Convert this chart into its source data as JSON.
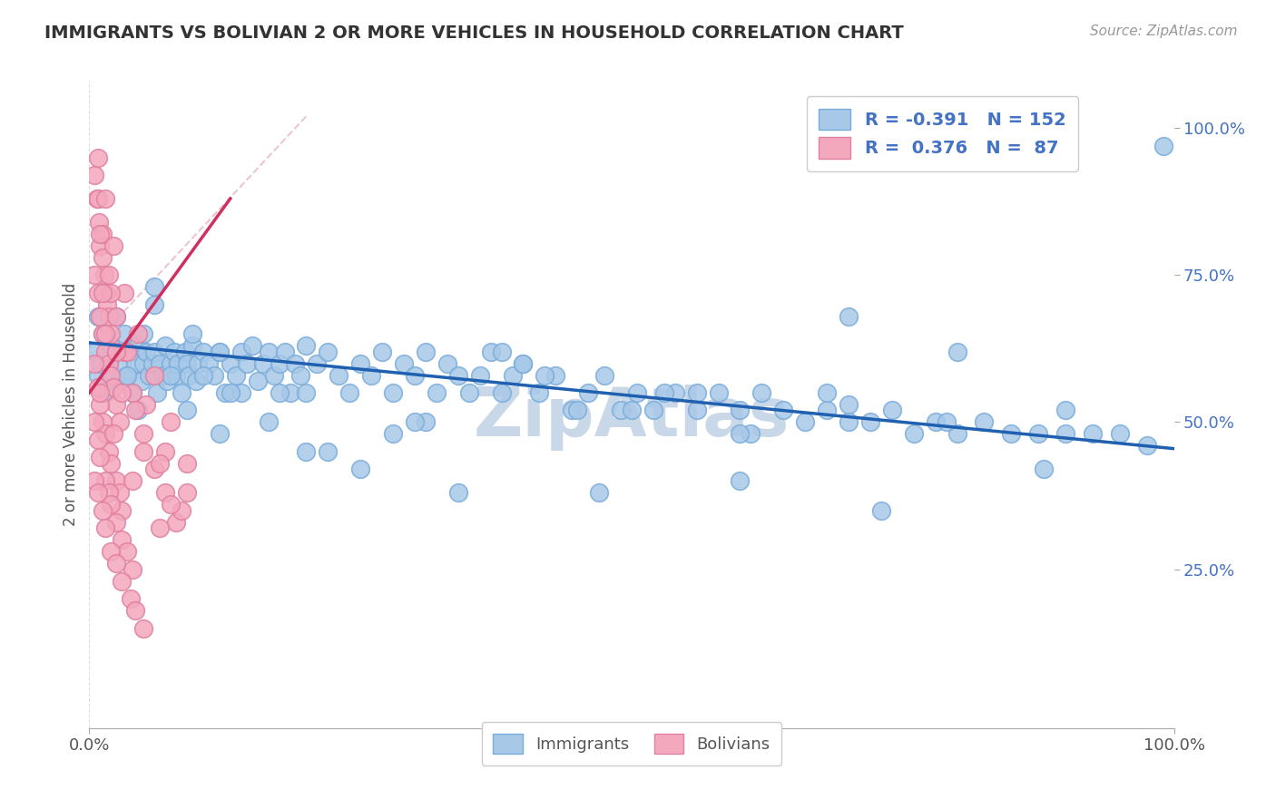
{
  "title": "IMMIGRANTS VS BOLIVIAN 2 OR MORE VEHICLES IN HOUSEHOLD CORRELATION CHART",
  "source": "Source: ZipAtlas.com",
  "ylabel": "2 or more Vehicles in Household",
  "right_yticks": [
    "100.0%",
    "75.0%",
    "50.0%",
    "25.0%"
  ],
  "right_ytick_vals": [
    1.0,
    0.75,
    0.5,
    0.25
  ],
  "legend_blue_r": "-0.391",
  "legend_blue_n": "152",
  "legend_pink_r": "0.376",
  "legend_pink_n": "87",
  "blue_color": "#a8c8e8",
  "pink_color": "#f4a8be",
  "blue_line_color": "#2060b0",
  "pink_line_color": "#d03060",
  "watermark": "ZipAtlas",
  "watermark_color": "#c8d8e8",
  "xlim": [
    0.0,
    1.0
  ],
  "ylim": [
    -0.02,
    1.08
  ],
  "blue_scatter_x": [
    0.005,
    0.008,
    0.01,
    0.012,
    0.015,
    0.018,
    0.02,
    0.022,
    0.025,
    0.028,
    0.03,
    0.032,
    0.035,
    0.038,
    0.04,
    0.042,
    0.045,
    0.048,
    0.05,
    0.052,
    0.055,
    0.058,
    0.06,
    0.062,
    0.065,
    0.068,
    0.07,
    0.072,
    0.075,
    0.078,
    0.08,
    0.082,
    0.085,
    0.088,
    0.09,
    0.092,
    0.095,
    0.098,
    0.1,
    0.105,
    0.11,
    0.115,
    0.12,
    0.125,
    0.13,
    0.135,
    0.14,
    0.145,
    0.15,
    0.155,
    0.16,
    0.165,
    0.17,
    0.175,
    0.18,
    0.185,
    0.19,
    0.195,
    0.2,
    0.21,
    0.22,
    0.23,
    0.24,
    0.25,
    0.26,
    0.27,
    0.28,
    0.29,
    0.3,
    0.31,
    0.32,
    0.33,
    0.34,
    0.35,
    0.36,
    0.37,
    0.38,
    0.39,
    0.4,
    0.415,
    0.43,
    0.445,
    0.46,
    0.475,
    0.49,
    0.505,
    0.52,
    0.54,
    0.56,
    0.58,
    0.6,
    0.62,
    0.64,
    0.66,
    0.68,
    0.7,
    0.72,
    0.74,
    0.76,
    0.78,
    0.8,
    0.825,
    0.85,
    0.875,
    0.9,
    0.925,
    0.95,
    0.975,
    0.99,
    0.008,
    0.015,
    0.025,
    0.035,
    0.045,
    0.06,
    0.075,
    0.09,
    0.105,
    0.12,
    0.14,
    0.165,
    0.2,
    0.25,
    0.31,
    0.38,
    0.45,
    0.53,
    0.61,
    0.7,
    0.8,
    0.9,
    0.06,
    0.12,
    0.2,
    0.3,
    0.4,
    0.5,
    0.6,
    0.7,
    0.095,
    0.175,
    0.28,
    0.42,
    0.56,
    0.68,
    0.79,
    0.88,
    0.05,
    0.13,
    0.22,
    0.34,
    0.47,
    0.6,
    0.73
  ],
  "blue_scatter_y": [
    0.62,
    0.58,
    0.6,
    0.65,
    0.55,
    0.6,
    0.63,
    0.58,
    0.62,
    0.57,
    0.6,
    0.65,
    0.58,
    0.62,
    0.55,
    0.6,
    0.63,
    0.57,
    0.6,
    0.62,
    0.58,
    0.6,
    0.62,
    0.55,
    0.6,
    0.58,
    0.63,
    0.57,
    0.6,
    0.62,
    0.58,
    0.6,
    0.55,
    0.62,
    0.6,
    0.58,
    0.63,
    0.57,
    0.6,
    0.62,
    0.6,
    0.58,
    0.62,
    0.55,
    0.6,
    0.58,
    0.62,
    0.6,
    0.63,
    0.57,
    0.6,
    0.62,
    0.58,
    0.6,
    0.62,
    0.55,
    0.6,
    0.58,
    0.63,
    0.6,
    0.62,
    0.58,
    0.55,
    0.6,
    0.58,
    0.62,
    0.55,
    0.6,
    0.58,
    0.62,
    0.55,
    0.6,
    0.58,
    0.55,
    0.58,
    0.62,
    0.55,
    0.58,
    0.6,
    0.55,
    0.58,
    0.52,
    0.55,
    0.58,
    0.52,
    0.55,
    0.52,
    0.55,
    0.52,
    0.55,
    0.52,
    0.55,
    0.52,
    0.5,
    0.52,
    0.5,
    0.5,
    0.52,
    0.48,
    0.5,
    0.48,
    0.5,
    0.48,
    0.48,
    0.48,
    0.48,
    0.48,
    0.46,
    0.97,
    0.68,
    0.72,
    0.68,
    0.58,
    0.52,
    0.7,
    0.58,
    0.52,
    0.58,
    0.48,
    0.55,
    0.5,
    0.45,
    0.42,
    0.5,
    0.62,
    0.52,
    0.55,
    0.48,
    0.68,
    0.62,
    0.52,
    0.73,
    0.62,
    0.55,
    0.5,
    0.6,
    0.52,
    0.48,
    0.53,
    0.65,
    0.55,
    0.48,
    0.58,
    0.55,
    0.55,
    0.5,
    0.42,
    0.65,
    0.55,
    0.45,
    0.38,
    0.38,
    0.4,
    0.35
  ],
  "pink_scatter_x": [
    0.005,
    0.007,
    0.009,
    0.01,
    0.012,
    0.014,
    0.015,
    0.016,
    0.018,
    0.02,
    0.005,
    0.008,
    0.01,
    0.012,
    0.015,
    0.018,
    0.02,
    0.022,
    0.025,
    0.028,
    0.005,
    0.008,
    0.01,
    0.012,
    0.015,
    0.018,
    0.02,
    0.025,
    0.028,
    0.03,
    0.005,
    0.008,
    0.01,
    0.015,
    0.018,
    0.02,
    0.025,
    0.03,
    0.035,
    0.04,
    0.005,
    0.008,
    0.012,
    0.015,
    0.02,
    0.025,
    0.03,
    0.038,
    0.042,
    0.05,
    0.008,
    0.012,
    0.018,
    0.025,
    0.032,
    0.04,
    0.05,
    0.06,
    0.07,
    0.08,
    0.008,
    0.015,
    0.022,
    0.032,
    0.045,
    0.06,
    0.075,
    0.09,
    0.01,
    0.02,
    0.035,
    0.052,
    0.07,
    0.09,
    0.012,
    0.025,
    0.042,
    0.065,
    0.085,
    0.015,
    0.03,
    0.05,
    0.075,
    0.01,
    0.022,
    0.04,
    0.065
  ],
  "pink_scatter_y": [
    0.92,
    0.88,
    0.84,
    0.8,
    0.78,
    0.75,
    0.72,
    0.7,
    0.68,
    0.65,
    0.75,
    0.72,
    0.68,
    0.65,
    0.62,
    0.6,
    0.58,
    0.56,
    0.53,
    0.5,
    0.6,
    0.56,
    0.53,
    0.5,
    0.48,
    0.45,
    0.43,
    0.4,
    0.38,
    0.35,
    0.5,
    0.47,
    0.44,
    0.4,
    0.38,
    0.36,
    0.33,
    0.3,
    0.28,
    0.25,
    0.4,
    0.38,
    0.35,
    0.32,
    0.28,
    0.26,
    0.23,
    0.2,
    0.18,
    0.15,
    0.88,
    0.82,
    0.75,
    0.68,
    0.62,
    0.55,
    0.48,
    0.42,
    0.38,
    0.33,
    0.95,
    0.88,
    0.8,
    0.72,
    0.65,
    0.58,
    0.5,
    0.43,
    0.82,
    0.72,
    0.62,
    0.53,
    0.45,
    0.38,
    0.72,
    0.62,
    0.52,
    0.43,
    0.35,
    0.65,
    0.55,
    0.45,
    0.36,
    0.55,
    0.48,
    0.4,
    0.32
  ],
  "blue_line_x": [
    0.0,
    1.0
  ],
  "blue_line_y": [
    0.635,
    0.455
  ],
  "pink_line_x": [
    0.0,
    0.13
  ],
  "pink_line_y": [
    0.55,
    0.88
  ],
  "diag_line_x": [
    0.0,
    0.2
  ],
  "diag_line_y": [
    0.625,
    1.02
  ]
}
